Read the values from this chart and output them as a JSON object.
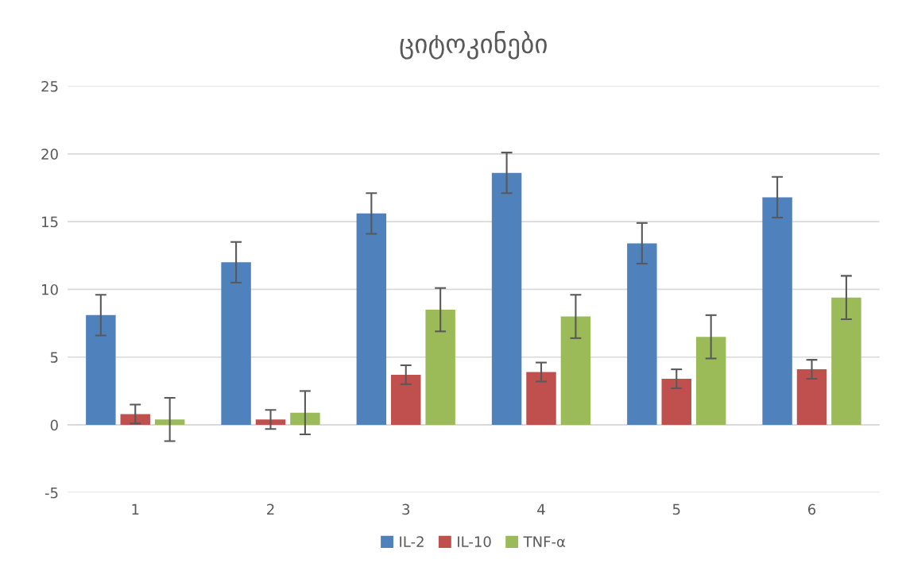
{
  "chart_data": {
    "type": "bar",
    "title": "ციტოკინები",
    "categories": [
      "1",
      "2",
      "3",
      "4",
      "5",
      "6"
    ],
    "series": [
      {
        "name": "IL-2",
        "color": "#4f81bd",
        "values": [
          8.1,
          12.0,
          15.6,
          18.6,
          13.4,
          16.8
        ],
        "errors": [
          1.5,
          1.5,
          1.5,
          1.5,
          1.5,
          1.5
        ]
      },
      {
        "name": "IL-10",
        "color": "#c0504d",
        "values": [
          0.8,
          0.4,
          3.7,
          3.9,
          3.4,
          4.1
        ],
        "errors": [
          0.7,
          0.7,
          0.7,
          0.7,
          0.7,
          0.7
        ]
      },
      {
        "name": "TNF-α",
        "color": "#9bbb59",
        "values": [
          0.4,
          0.9,
          8.5,
          8.0,
          6.5,
          9.4
        ],
        "errors": [
          1.6,
          1.6,
          1.6,
          1.6,
          1.6,
          1.6
        ]
      }
    ],
    "ylim": [
      -5,
      25
    ],
    "yticks": [
      -5,
      0,
      5,
      10,
      15,
      20,
      25
    ],
    "grid": "y",
    "legend": "bottom"
  }
}
